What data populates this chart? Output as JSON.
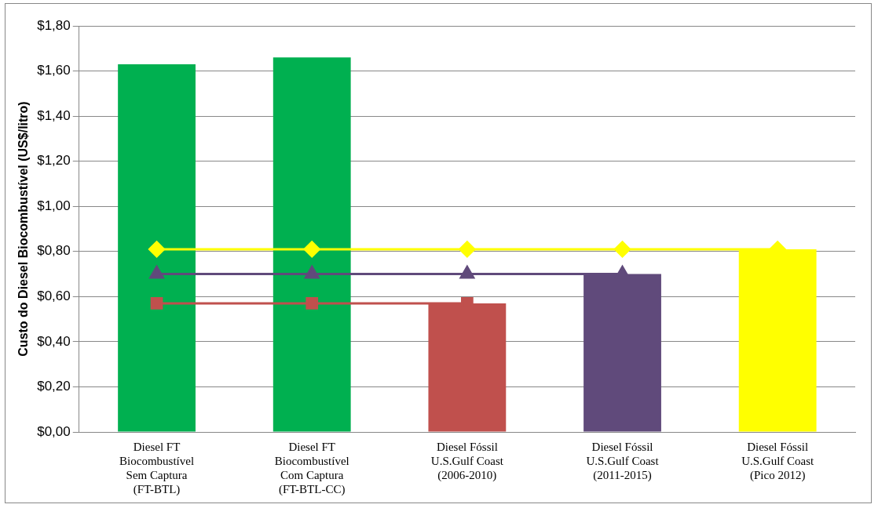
{
  "chart_data": {
    "type": "bar",
    "ylabel": "Custo do Diesel Biocombustível (US$/litro)",
    "categories": [
      "Diesel FT\nBiocombustível\nSem Captura\n(FT-BTL)",
      "Diesel FT\nBiocombustível\nCom Captura\n(FT-BTL-CC)",
      "Diesel Fóssil\nU.S.Gulf Coast\n(2006-2010)",
      "Diesel Fóssil\nU.S.Gulf Coast\n(2011-2015)",
      "Diesel Fóssil\nU.S.Gulf Coast\n(Pico 2012)"
    ],
    "series": [
      {
        "colors": [
          "#00b050",
          "#00b050",
          "#c0504d",
          "#604a7b",
          "#ffff00"
        ],
        "values": [
          1.63,
          1.66,
          0.57,
          0.7,
          0.81
        ]
      },
      {
        "type": "line",
        "color": "#c0504d",
        "marker": "square",
        "values": [
          0.57,
          0.57,
          0.57,
          null,
          null
        ]
      },
      {
        "type": "line",
        "color": "#604a7b",
        "marker": "triangle",
        "values": [
          0.7,
          0.7,
          0.7,
          0.7,
          null
        ]
      },
      {
        "type": "line",
        "color": "#ffff00",
        "marker": "diamond",
        "values": [
          0.81,
          0.81,
          0.81,
          0.81,
          0.81
        ]
      }
    ],
    "ylim": [
      0,
      1.8
    ],
    "yticks": [
      {
        "value": 0,
        "label": "$0,00"
      },
      {
        "value": 0.2,
        "label": "$0,20"
      },
      {
        "value": 0.4,
        "label": "$0,40"
      },
      {
        "value": 0.6,
        "label": "$0,60"
      },
      {
        "value": 0.8,
        "label": "$0,80"
      },
      {
        "value": 1.0,
        "label": "$1,00"
      },
      {
        "value": 1.2,
        "label": "$1,20"
      },
      {
        "value": 1.4,
        "label": "$1,40"
      },
      {
        "value": 1.6,
        "label": "$1,60"
      },
      {
        "value": 1.8,
        "label": "$1,80"
      }
    ],
    "grid": "y"
  }
}
